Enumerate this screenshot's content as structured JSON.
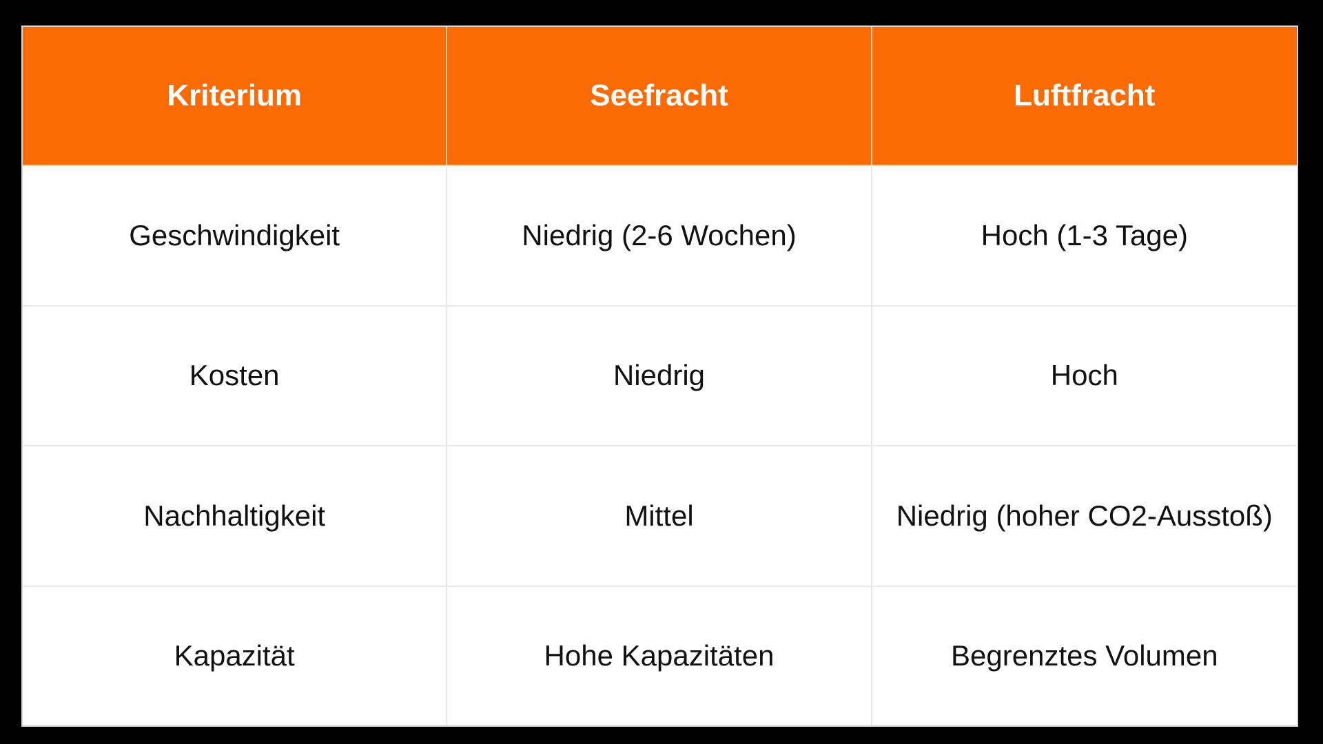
{
  "slide": {
    "background_color": "#000000"
  },
  "table": {
    "accent_color": "#fa6a05",
    "header_text_color": "#ffffff",
    "body_text_color": "#111111",
    "columns": [
      "Kriterium",
      "Seefracht",
      "Luftfracht"
    ],
    "rows": [
      {
        "kriterium": "Geschwindigkeit",
        "seefracht": "Niedrig (2-6 Wochen)",
        "luftfracht": "Hoch (1-3 Tage)"
      },
      {
        "kriterium": "Kosten",
        "seefracht": "Niedrig",
        "luftfracht": "Hoch"
      },
      {
        "kriterium": "Nachhaltigkeit",
        "seefracht": "Mittel",
        "luftfracht": "Niedrig (hoher CO2-Ausstoß)"
      },
      {
        "kriterium": "Kapazität",
        "seefracht": "Hohe Kapazitäten",
        "luftfracht": "Begrenztes Volumen"
      }
    ]
  }
}
